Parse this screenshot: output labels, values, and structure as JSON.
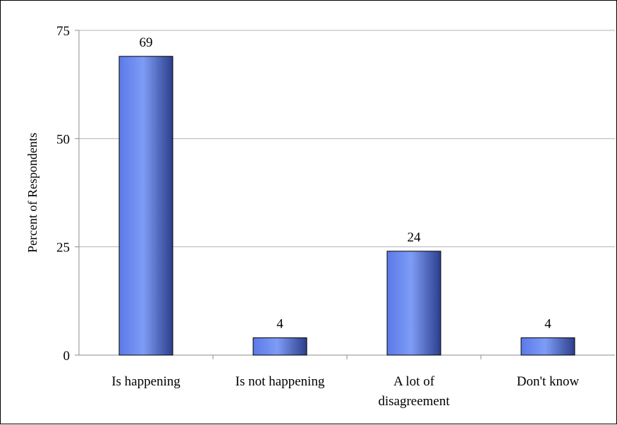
{
  "chart_data": {
    "type": "bar",
    "title": "",
    "xlabel": "",
    "ylabel": "Percent of Respondents",
    "categories": [
      [
        "Is happening"
      ],
      [
        "Is not happening"
      ],
      [
        "A lot of",
        "disagreement"
      ],
      [
        "Don't know"
      ]
    ],
    "values": [
      69,
      4,
      24,
      4
    ],
    "data_labels": [
      "69",
      "4",
      "24",
      "4"
    ],
    "ylim": [
      0,
      75
    ],
    "yticks": [
      0,
      25,
      50,
      75
    ],
    "ytick_labels": [
      "0",
      "25",
      "50",
      "75"
    ],
    "grid": "horizontal",
    "legend": "none",
    "colors": {
      "bar_light": "#7e9cf6",
      "bar_mid": "#5b7ae8",
      "bar_dark": "#2c3f8c",
      "bar_edge": "#000000",
      "grid": "#b3b3b3",
      "axis": "#8c8c8c"
    }
  }
}
